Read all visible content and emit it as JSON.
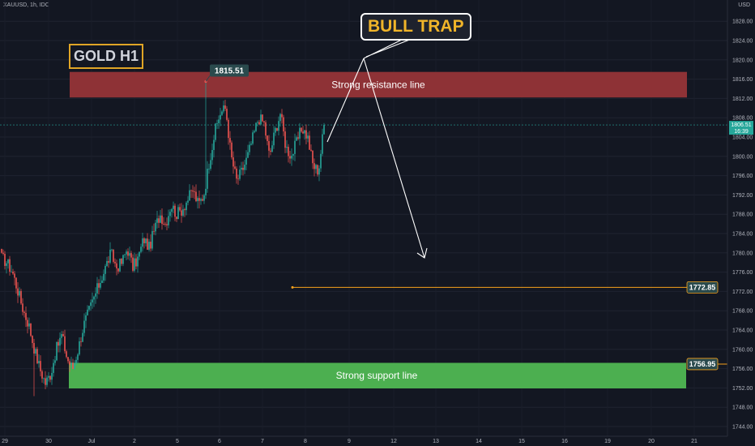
{
  "header": {
    "symbol": "XAUUSD, 1h, IDC",
    "currency": "USD"
  },
  "annotations": {
    "gold_label": "GOLD H1",
    "bull_trap": "BULL TRAP",
    "resistance_label": "Strong resistance line",
    "support_label": "Strong support line",
    "high_marker": "1815.51",
    "target_level": "1772.85",
    "support_level": "1756.95"
  },
  "price_tag": {
    "price": "1806.51",
    "countdown": "16:39"
  },
  "colors": {
    "background": "#131722",
    "bull": "#26a69a",
    "bear": "#ef5350",
    "resistance_zone": "#8e3236",
    "support_zone": "#4caf50",
    "target_line": "#f7a21b",
    "gold_border": "#e0a526",
    "bull_trap_text": "#f0b429"
  },
  "chart_data": {
    "type": "candlestick",
    "title": "",
    "y_axis": {
      "range": [
        1742.5,
        1830
      ],
      "ticks": [
        "1828.00",
        "1824.00",
        "1820.00",
        "1816.00",
        "1812.00",
        "1808.00",
        "1804.00",
        "1800.00",
        "1796.00",
        "1792.00",
        "1788.00",
        "1784.00",
        "1780.00",
        "1776.00",
        "1772.00",
        "1768.00",
        "1764.00",
        "1760.00",
        "1756.00",
        "1752.00",
        "1748.00",
        "1744.00"
      ]
    },
    "x_axis": {
      "labels": [
        "29",
        "30",
        "Jul",
        "2",
        "5",
        "6",
        "7",
        "8",
        "9",
        "12",
        "13",
        "14",
        "15",
        "16",
        "19",
        "20",
        "21"
      ]
    },
    "zones": [
      {
        "name": "Strong resistance line",
        "from": 1812.2,
        "to": 1817.5
      },
      {
        "name": "Strong support line",
        "from": 1751.9,
        "to": 1757.2
      }
    ],
    "levels": [
      {
        "label": "1772.85",
        "value": 1772.85
      },
      {
        "label": "1756.95",
        "value": 1756.95
      }
    ],
    "last_price": 1806.51,
    "session_high": 1815.51,
    "session_low": 1750.3,
    "path_closes": [
      1779,
      1778,
      1776,
      1772,
      1768,
      1765,
      1760,
      1756,
      1753,
      1755,
      1760,
      1763,
      1758,
      1756,
      1760,
      1765,
      1768,
      1771,
      1774,
      1777,
      1780,
      1777,
      1778,
      1781,
      1777,
      1779,
      1783,
      1781,
      1785,
      1788,
      1786,
      1790,
      1788,
      1789,
      1791,
      1793,
      1790,
      1792,
      1799,
      1805,
      1809,
      1810,
      1800,
      1795,
      1797,
      1800,
      1804,
      1808,
      1807,
      1800,
      1805,
      1809,
      1802,
      1800,
      1803,
      1806,
      1804,
      1798,
      1797,
      1806.5
    ]
  }
}
